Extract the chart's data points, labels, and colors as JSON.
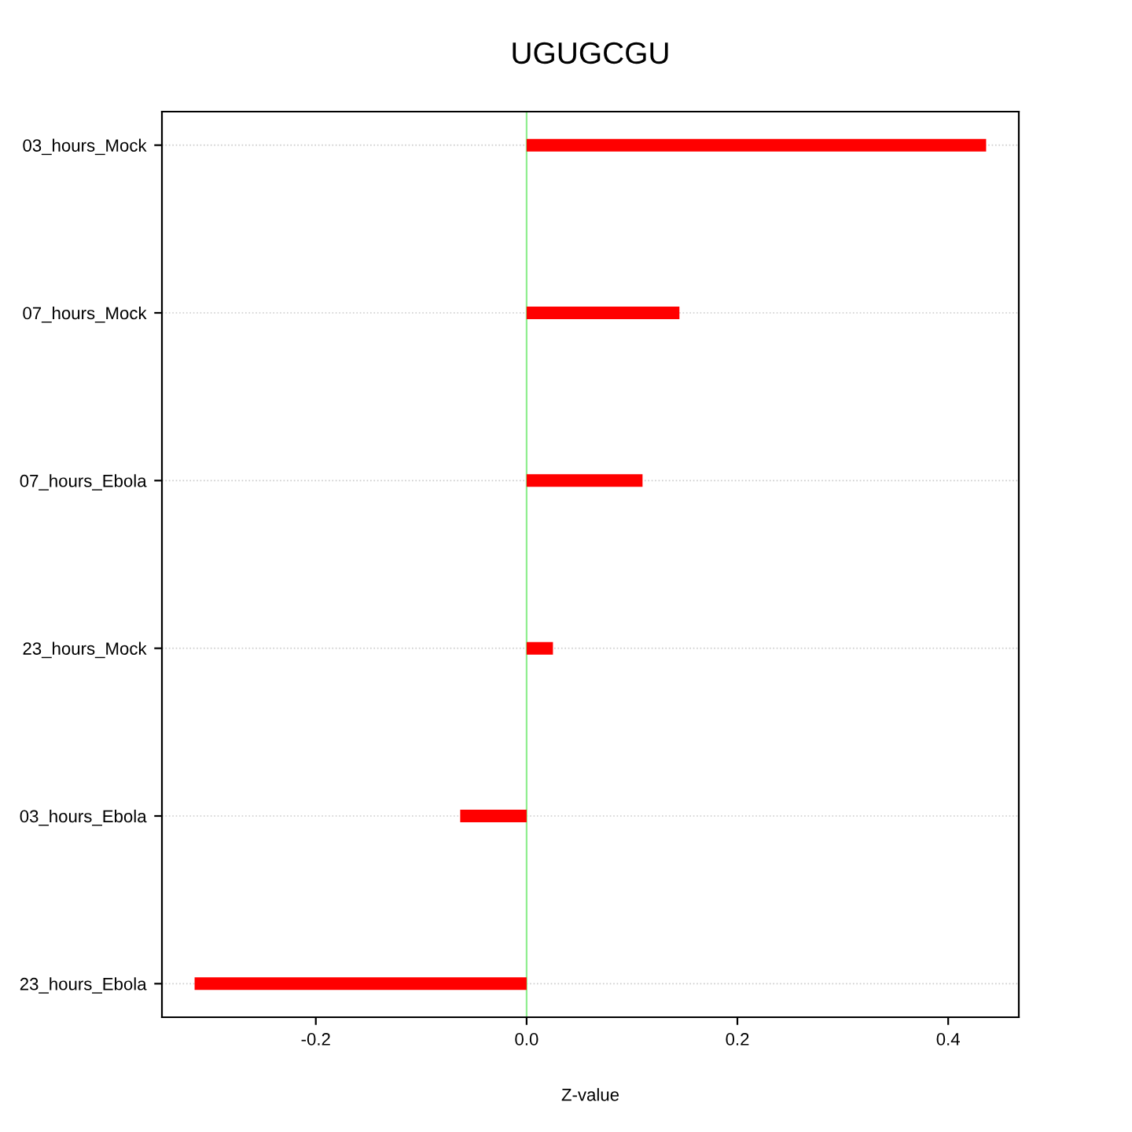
{
  "chart_data": {
    "type": "bar",
    "orientation": "horizontal",
    "title": "UGUGCGU",
    "xlabel": "Z-value",
    "categories": [
      "03_hours_Mock",
      "07_hours_Mock",
      "07_hours_Ebola",
      "23_hours_Mock",
      "03_hours_Ebola",
      "23_hours_Ebola"
    ],
    "values": [
      0.436,
      0.145,
      0.11,
      0.025,
      -0.063,
      -0.315
    ],
    "color": "#ff0000",
    "xlim": [
      -0.346,
      0.467
    ],
    "xticks": [
      -0.2,
      {
        "value": 0,
        "label": "0.0"
      },
      0.2,
      0.4
    ],
    "ref_lines": [
      {
        "axis": "x",
        "value": 0,
        "color": "#90ee90"
      }
    ],
    "grid": "y"
  }
}
